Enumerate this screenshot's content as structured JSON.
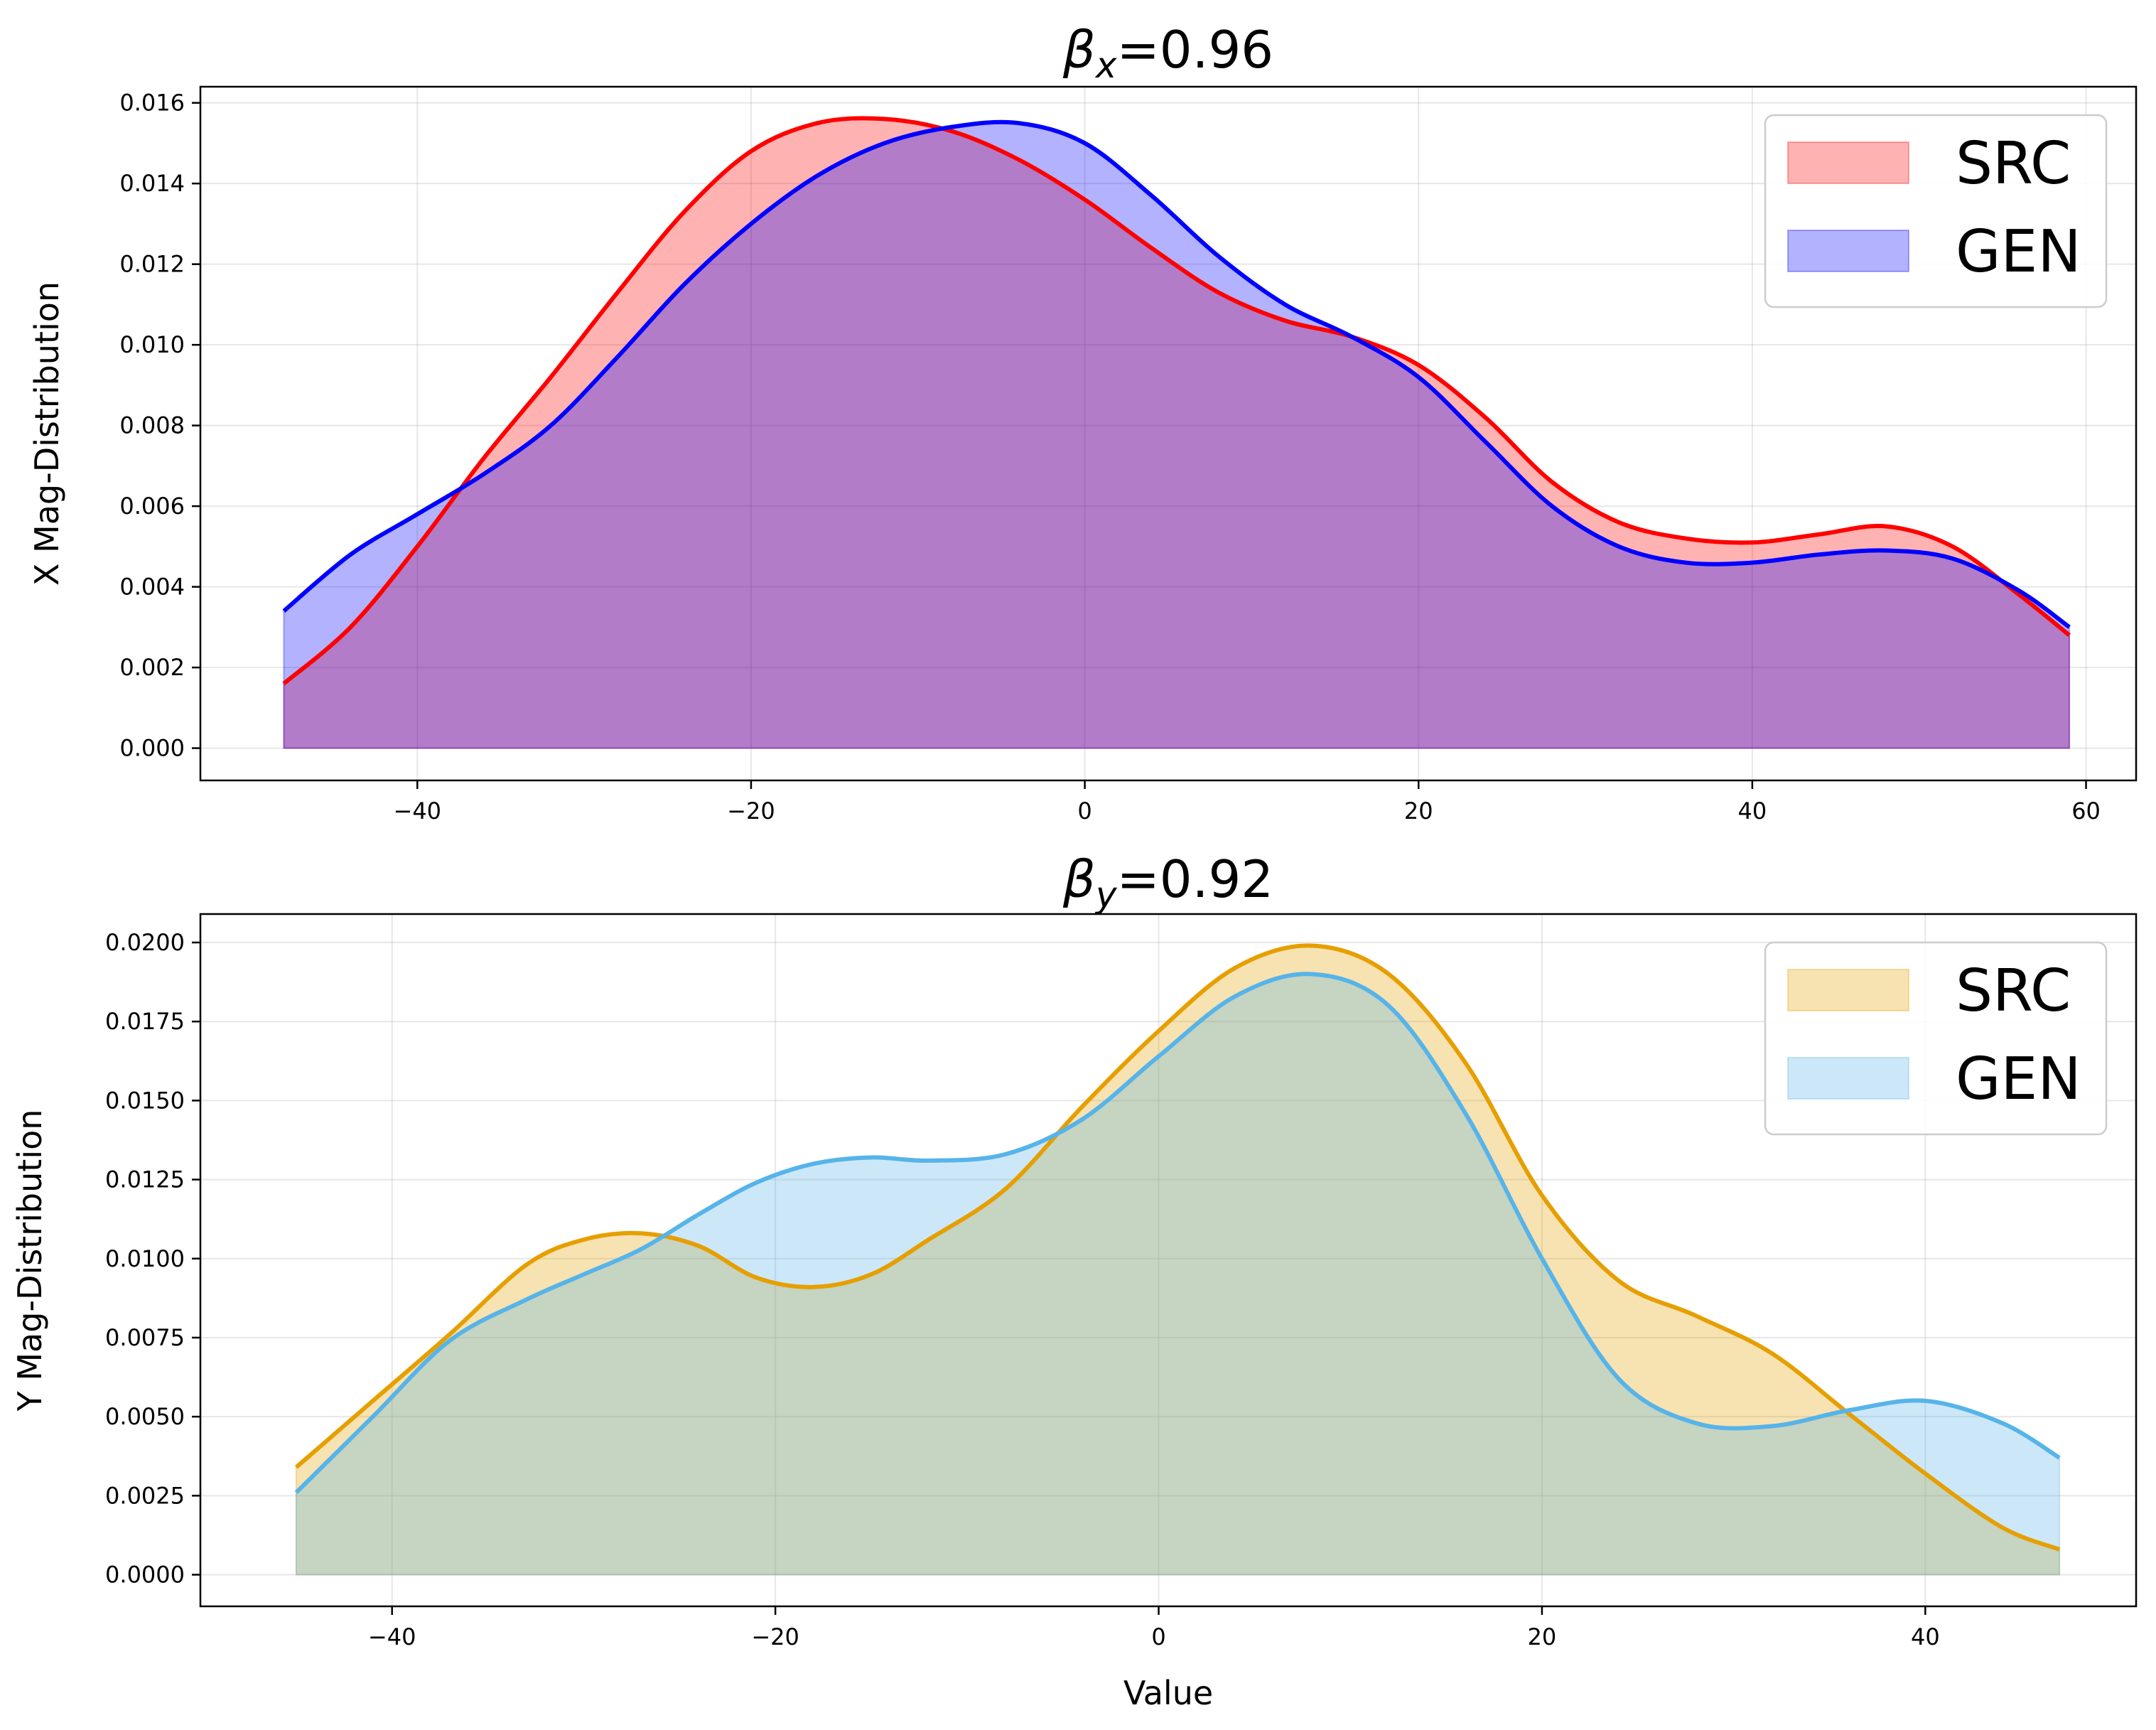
{
  "chart_data": [
    {
      "type": "area",
      "title_symbol": "β",
      "title_subscript": "x",
      "title_value": "=0.96",
      "xlabel": "",
      "ylabel": "X Mag-Distribution",
      "xlim": [
        -53,
        63
      ],
      "ylim": [
        -0.0008,
        0.0164
      ],
      "xticks": [
        -40,
        -20,
        0,
        20,
        40,
        60
      ],
      "xtick_labels": [
        "−40",
        "−20",
        "0",
        "20",
        "40",
        "60"
      ],
      "yticks": [
        0,
        0.002,
        0.004,
        0.006,
        0.008,
        0.01,
        0.012,
        0.014,
        0.016
      ],
      "ytick_labels": [
        "0.000",
        "0.002",
        "0.004",
        "0.006",
        "0.008",
        "0.010",
        "0.012",
        "0.014",
        "0.016"
      ],
      "grid": true,
      "legend_position": "upper-right",
      "series": [
        {
          "name": "SRC",
          "line_color": "#ff0000",
          "fill_color": "#ff0000",
          "x": [
            -48,
            -44,
            -40,
            -36,
            -32,
            -28,
            -24,
            -20,
            -16,
            -12,
            -8,
            -4,
            0,
            4,
            8,
            12,
            16,
            20,
            24,
            28,
            32,
            36,
            40,
            44,
            48,
            52,
            56,
            59
          ],
          "y": [
            0.0016,
            0.003,
            0.005,
            0.0072,
            0.0092,
            0.0113,
            0.0133,
            0.0148,
            0.0155,
            0.0156,
            0.0153,
            0.0146,
            0.0136,
            0.0124,
            0.0113,
            0.0106,
            0.0102,
            0.0095,
            0.0082,
            0.0066,
            0.0056,
            0.0052,
            0.0051,
            0.0053,
            0.0055,
            0.005,
            0.0038,
            0.0028
          ]
        },
        {
          "name": "GEN",
          "line_color": "#0000ff",
          "fill_color": "#0000ff",
          "x": [
            -48,
            -44,
            -40,
            -36,
            -32,
            -28,
            -24,
            -20,
            -16,
            -12,
            -8,
            -4,
            0,
            4,
            8,
            12,
            16,
            20,
            24,
            28,
            32,
            36,
            40,
            44,
            48,
            52,
            56,
            59
          ],
          "y": [
            0.0034,
            0.0048,
            0.0058,
            0.0068,
            0.008,
            0.0097,
            0.0115,
            0.013,
            0.0142,
            0.015,
            0.0154,
            0.0155,
            0.015,
            0.0137,
            0.0122,
            0.011,
            0.0102,
            0.0092,
            0.0076,
            0.006,
            0.005,
            0.0046,
            0.0046,
            0.0048,
            0.0049,
            0.0047,
            0.0039,
            0.003
          ]
        }
      ]
    },
    {
      "type": "area",
      "title_symbol": "β",
      "title_subscript": "y",
      "title_value": "=0.92",
      "xlabel": "Value",
      "ylabel": "Y Mag-Distribution",
      "xlim": [
        -50,
        51
      ],
      "ylim": [
        -0.001,
        0.0209
      ],
      "xticks": [
        -40,
        -20,
        0,
        20,
        40
      ],
      "xtick_labels": [
        "−40",
        "−20",
        "0",
        "20",
        "40"
      ],
      "yticks": [
        0,
        0.0025,
        0.005,
        0.0075,
        0.01,
        0.0125,
        0.015,
        0.0175,
        0.02
      ],
      "ytick_labels": [
        "0.0000",
        "0.0025",
        "0.0050",
        "0.0075",
        "0.0100",
        "0.0125",
        "0.0150",
        "0.0175",
        "0.0200"
      ],
      "grid": true,
      "legend_position": "upper-right",
      "series": [
        {
          "name": "SRC",
          "line_color": "#e69f00",
          "fill_color": "#e69f00",
          "x": [
            -45,
            -41,
            -37,
            -33,
            -30,
            -27,
            -24,
            -21,
            -18,
            -15,
            -12,
            -8,
            -4,
            0,
            4,
            8,
            12,
            16,
            20,
            24,
            28,
            32,
            36,
            40,
            44,
            47
          ],
          "y": [
            0.0034,
            0.0055,
            0.0076,
            0.0098,
            0.0106,
            0.0108,
            0.0104,
            0.0094,
            0.0091,
            0.0095,
            0.0106,
            0.0122,
            0.0148,
            0.0172,
            0.0192,
            0.0199,
            0.019,
            0.0162,
            0.012,
            0.0093,
            0.0082,
            0.007,
            0.0051,
            0.0032,
            0.0015,
            0.0008
          ]
        },
        {
          "name": "GEN",
          "line_color": "#56b4e9",
          "fill_color": "#56b4e9",
          "x": [
            -45,
            -41,
            -37,
            -33,
            -30,
            -27,
            -24,
            -21,
            -18,
            -15,
            -12,
            -8,
            -4,
            0,
            4,
            8,
            12,
            16,
            20,
            24,
            28,
            32,
            36,
            40,
            44,
            47
          ],
          "y": [
            0.0026,
            0.005,
            0.0074,
            0.0087,
            0.0095,
            0.0103,
            0.0114,
            0.0124,
            0.013,
            0.0132,
            0.0131,
            0.0133,
            0.0144,
            0.0164,
            0.0183,
            0.019,
            0.018,
            0.0146,
            0.01,
            0.0062,
            0.0048,
            0.0047,
            0.0052,
            0.0055,
            0.0048,
            0.0037
          ]
        }
      ]
    }
  ]
}
